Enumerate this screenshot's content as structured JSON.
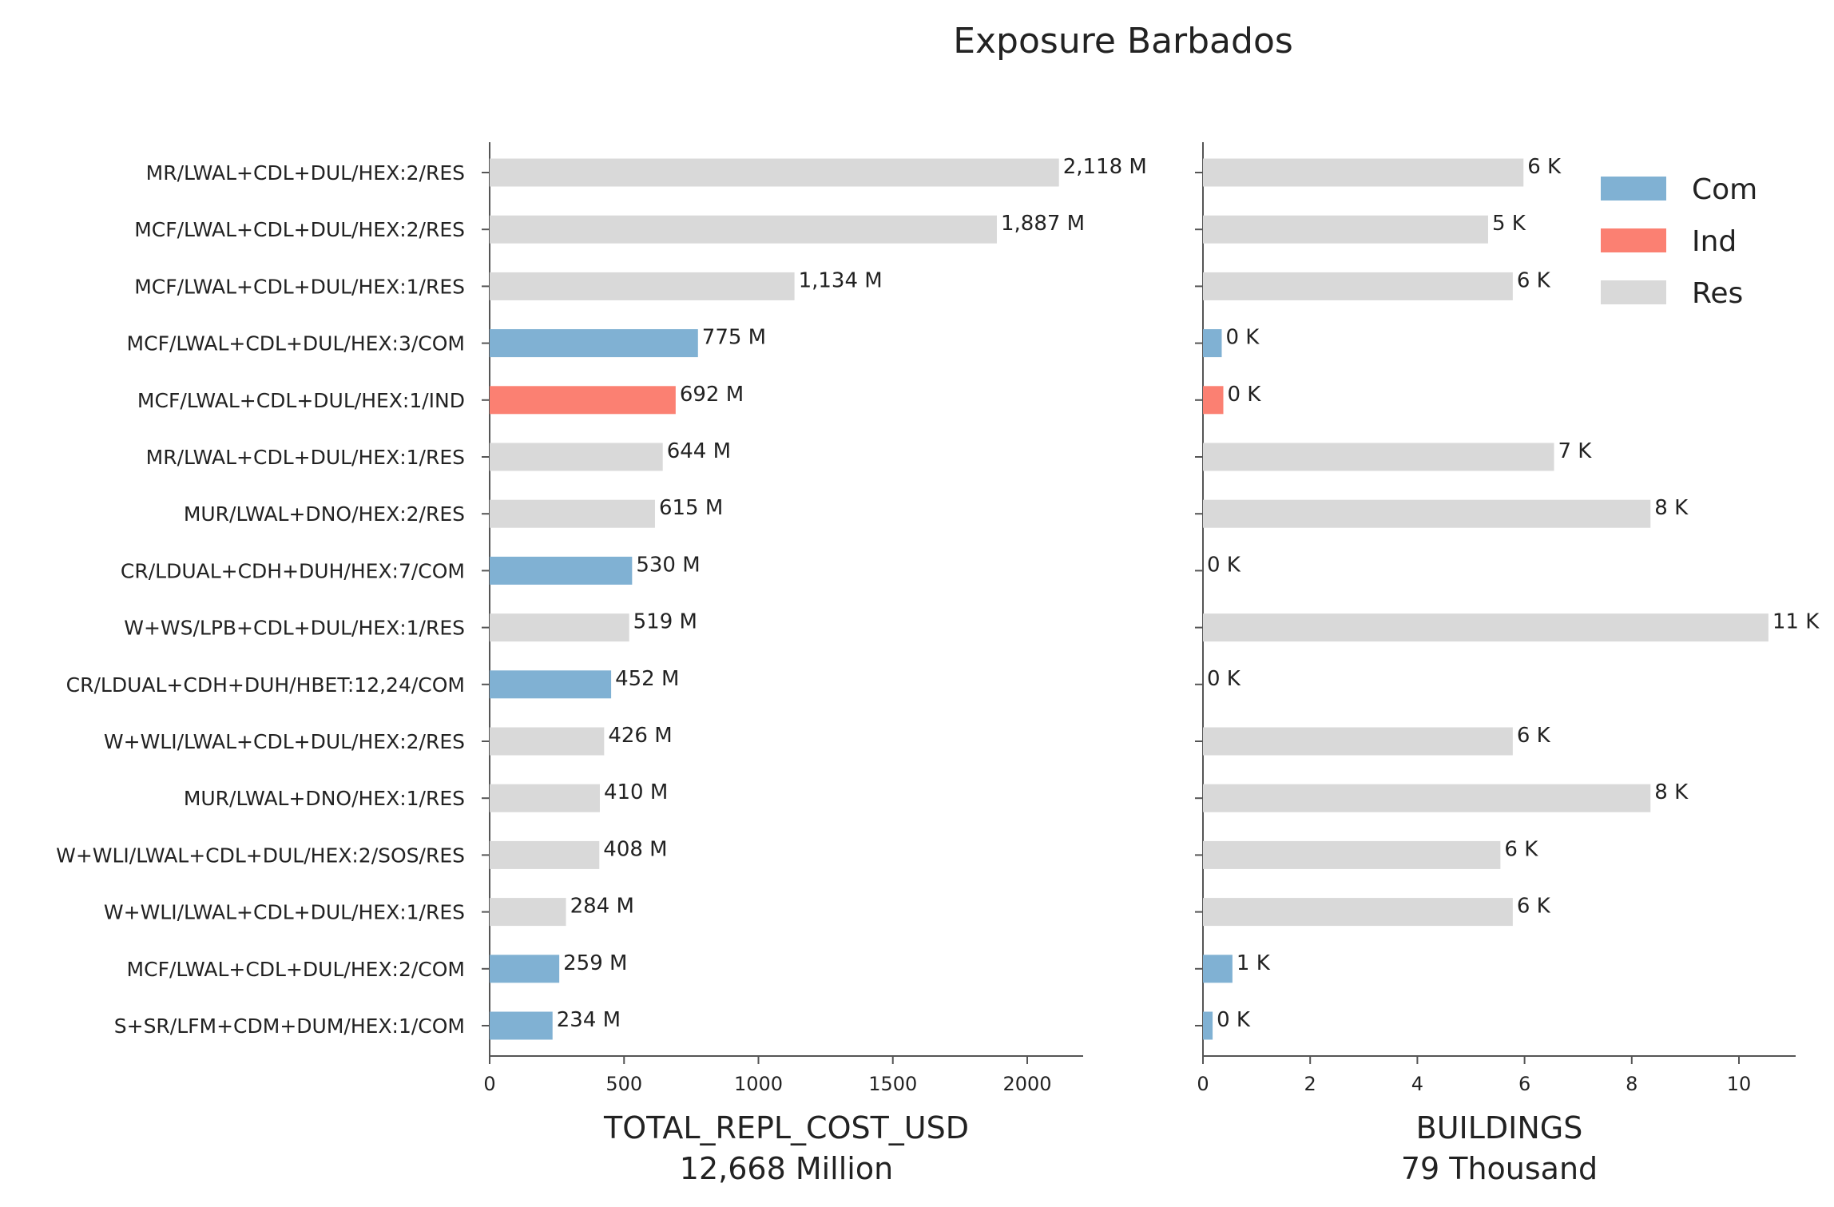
{
  "chart_data": {
    "type": "bar",
    "orientation": "horizontal",
    "title": "Exposure Barbados",
    "categories": [
      "MR/LWAL+CDL+DUL/HEX:2/RES",
      "MCF/LWAL+CDL+DUL/HEX:2/RES",
      "MCF/LWAL+CDL+DUL/HEX:1/RES",
      "MCF/LWAL+CDL+DUL/HEX:3/COM",
      "MCF/LWAL+CDL+DUL/HEX:1/IND",
      "MR/LWAL+CDL+DUL/HEX:1/RES",
      "MUR/LWAL+DNO/HEX:2/RES",
      "CR/LDUAL+CDH+DUH/HEX:7/COM",
      "W+WS/LPB+CDL+DUL/HEX:1/RES",
      "CR/LDUAL+CDH+DUH/HBET:12,24/COM",
      "W+WLI/LWAL+CDL+DUL/HEX:2/RES",
      "MUR/LWAL+DNO/HEX:1/RES",
      "W+WLI/LWAL+CDL+DUL/HEX:2/SOS/RES",
      "W+WLI/LWAL+CDL+DUL/HEX:1/RES",
      "MCF/LWAL+CDL+DUL/HEX:2/COM",
      "S+SR/LFM+CDM+DUM/HEX:1/COM"
    ],
    "occupancy": [
      "Res",
      "Res",
      "Res",
      "Com",
      "Ind",
      "Res",
      "Res",
      "Com",
      "Res",
      "Com",
      "Res",
      "Res",
      "Res",
      "Res",
      "Com",
      "Com"
    ],
    "panels": [
      {
        "xlabel": "TOTAL_REPL_COST_USD",
        "xlabel_sub": "12,668 Million",
        "xlim": [
          0,
          2230
        ],
        "xticks": [
          0,
          500,
          1000,
          1500,
          2000
        ],
        "values": [
          2118,
          1887,
          1134,
          775,
          692,
          644,
          615,
          530,
          519,
          452,
          426,
          410,
          408,
          284,
          259,
          234
        ],
        "data_labels": [
          "2,118 M",
          "1,887 M",
          "1,134 M",
          "775 M",
          "692 M",
          "644 M",
          "615 M",
          "530 M",
          "519 M",
          "452 M",
          "426 M",
          "410 M",
          "408 M",
          "284 M",
          "259 M",
          "234 M"
        ]
      },
      {
        "xlabel": "BUILDINGS",
        "xlabel_sub": "79 Thousand",
        "xlim": [
          0,
          11.1
        ],
        "xticks": [
          0,
          2,
          4,
          6,
          8,
          10
        ],
        "values": [
          5.98,
          5.32,
          5.78,
          0.35,
          0.38,
          6.55,
          8.35,
          0.0,
          10.55,
          0.0,
          5.78,
          8.35,
          5.55,
          5.78,
          0.55,
          0.18
        ],
        "data_labels": [
          "6 K",
          "5 K",
          "6 K",
          "0 K",
          "0 K",
          "7 K",
          "8 K",
          "0 K",
          "11 K",
          "0 K",
          "6 K",
          "8 K",
          "6 K",
          "6 K",
          "1 K",
          "0 K"
        ]
      }
    ],
    "legend": {
      "position": "top-right",
      "entries": [
        {
          "name": "Com",
          "color": "#80b1d3"
        },
        {
          "name": "Ind",
          "color": "#fb8072"
        },
        {
          "name": "Res",
          "color": "#d9d9d9"
        }
      ]
    },
    "grid": false
  }
}
